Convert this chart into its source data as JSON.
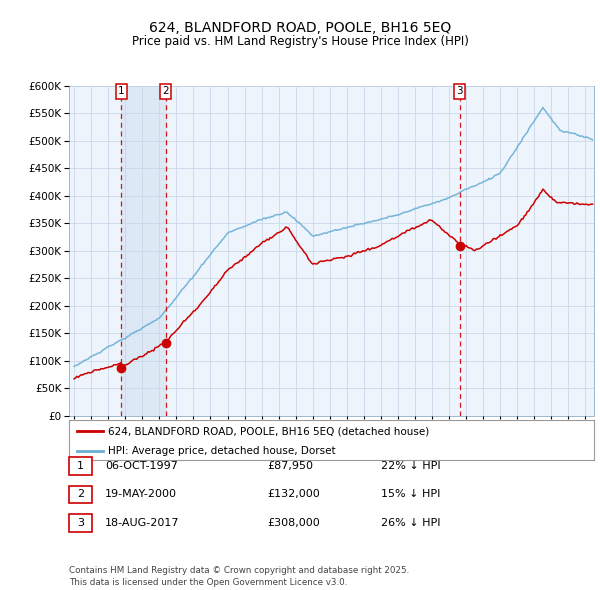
{
  "title": "624, BLANDFORD ROAD, POOLE, BH16 5EQ",
  "subtitle": "Price paid vs. HM Land Registry's House Price Index (HPI)",
  "legend_label_red": "624, BLANDFORD ROAD, POOLE, BH16 5EQ (detached house)",
  "legend_label_blue": "HPI: Average price, detached house, Dorset",
  "footer": "Contains HM Land Registry data © Crown copyright and database right 2025.\nThis data is licensed under the Open Government Licence v3.0.",
  "sales": [
    {
      "id": 1,
      "date": "06-OCT-1997",
      "price": 87950,
      "pct": "22%",
      "x_year": 1997.76
    },
    {
      "id": 2,
      "date": "19-MAY-2000",
      "price": 132000,
      "pct": "15%",
      "x_year": 2000.38
    },
    {
      "id": 3,
      "date": "18-AUG-2017",
      "price": 308000,
      "pct": "26%",
      "x_year": 2017.63
    }
  ],
  "hpi_color": "#6aaed6",
  "sale_color": "#cc0000",
  "vline_color": "#cc0000",
  "band_color": "#dce9f5",
  "grid_color": "#c8d8e8",
  "bg_color": "#eef4fb",
  "plot_bg": "#eef4fb",
  "ylim": [
    0,
    600000
  ],
  "yticks": [
    0,
    50000,
    100000,
    150000,
    200000,
    250000,
    300000,
    350000,
    400000,
    450000,
    500000,
    550000,
    600000
  ],
  "xlim_start": 1994.7,
  "xlim_end": 2025.5
}
